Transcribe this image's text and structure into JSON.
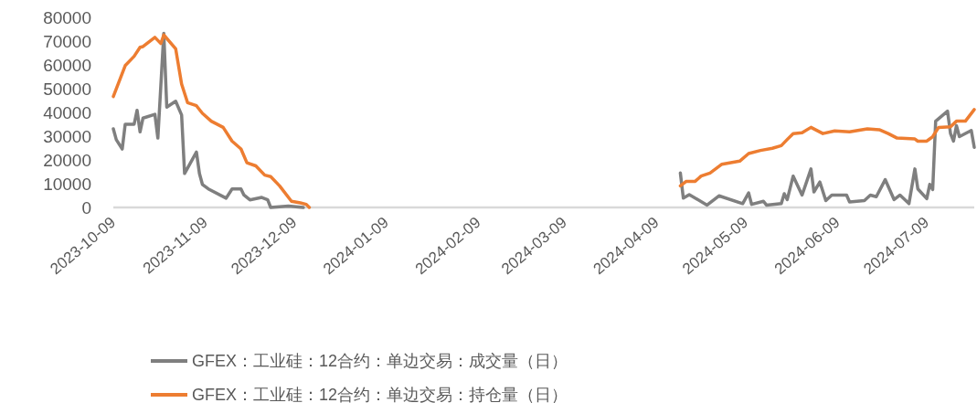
{
  "chart_data": {
    "type": "line",
    "legend": "bottom",
    "grid": false,
    "marker": "none",
    "line_style": "solid",
    "xlim": [
      "2023-10-09",
      "2024-07-25"
    ],
    "xticks": [
      {
        "value": "2023-10-09",
        "label": "2023-10-09"
      },
      {
        "value": "2023-11-09",
        "label": "2023-11-09"
      },
      {
        "value": "2023-12-09",
        "label": "2023-12-09"
      },
      {
        "value": "2024-01-09",
        "label": "2024-01-09"
      },
      {
        "value": "2024-02-09",
        "label": "2024-02-09"
      },
      {
        "value": "2024-03-09",
        "label": "2024-03-09"
      },
      {
        "value": "2024-04-09",
        "label": "2024-04-09"
      },
      {
        "value": "2024-05-09",
        "label": "2024-05-09"
      },
      {
        "value": "2024-06-09",
        "label": "2024-06-09"
      },
      {
        "value": "2024-07-09",
        "label": "2024-07-09"
      }
    ],
    "ylim": [
      0,
      80000
    ],
    "yticks": [
      0,
      10000,
      20000,
      30000,
      40000,
      50000,
      60000,
      70000,
      80000
    ],
    "series": [
      {
        "name": "GFEX：工业硅：12合约：单边交易：成交量（日）",
        "color": "#7f7f7f",
        "x": [
          "2023-10-09",
          "2023-10-10",
          "2023-10-12",
          "2023-10-13",
          "2023-10-16",
          "2023-10-17",
          "2023-10-18",
          "2023-10-19",
          "2023-10-23",
          "2023-10-24",
          "2023-10-26",
          "2023-10-27",
          "2023-10-30",
          "2023-11-01",
          "2023-11-02",
          "2023-11-04",
          "2023-11-06",
          "2023-11-07",
          "2023-11-08",
          "2023-11-10",
          "2023-11-16",
          "2023-11-18",
          "2023-11-21",
          "2023-11-22",
          "2023-11-24",
          "2023-11-28",
          "2023-11-30",
          "2023-12-01",
          "2023-12-07",
          "2023-12-12",
          "2024-01-01",
          "2024-04-17",
          "2024-04-18",
          "2024-04-20",
          "2024-04-26",
          "2024-04-30",
          "2024-05-08",
          "2024-05-10",
          "2024-05-11",
          "2024-05-15",
          "2024-05-16",
          "2024-05-21",
          "2024-05-22",
          "2024-05-23",
          "2024-05-25",
          "2024-05-28",
          "2024-05-31",
          "2024-06-01",
          "2024-06-03",
          "2024-06-05",
          "2024-06-07",
          "2024-06-12",
          "2024-06-13",
          "2024-06-18",
          "2024-06-20",
          "2024-06-22",
          "2024-06-25",
          "2024-06-28",
          "2024-06-30",
          "2024-07-03",
          "2024-07-05",
          "2024-07-06",
          "2024-07-09",
          "2024-07-10",
          "2024-07-11",
          "2024-07-12",
          "2024-07-16",
          "2024-07-17",
          "2024-07-18",
          "2024-07-19",
          "2024-07-20",
          "2024-07-24",
          "2024-07-25"
        ],
        "values": [
          33100,
          28500,
          24600,
          35000,
          35000,
          40900,
          31800,
          37600,
          39200,
          29200,
          73300,
          42200,
          44700,
          38900,
          14300,
          18800,
          23300,
          14300,
          9700,
          7800,
          3900,
          7800,
          7800,
          5200,
          3200,
          4200,
          3200,
          0,
          600,
          0,
          null,
          14500,
          3900,
          5400,
          1000,
          4900,
          1600,
          6100,
          1300,
          2600,
          1000,
          1600,
          5800,
          3300,
          13200,
          5200,
          16200,
          6500,
          10700,
          2900,
          5200,
          5200,
          2300,
          2900,
          5200,
          4500,
          11700,
          3300,
          5200,
          1600,
          16200,
          7800,
          3700,
          9700,
          7500,
          36300,
          40500,
          31100,
          27900,
          34400,
          29800,
          32400,
          25300
        ]
      },
      {
        "name": "GFEX：工业硅：12合约：单边交易：持仓量（日）",
        "color": "#ed7d31",
        "x": [
          "2023-10-09",
          "2023-10-13",
          "2023-10-16",
          "2023-10-18",
          "2023-10-19",
          "2023-10-23",
          "2023-10-25",
          "2023-10-26",
          "2023-10-30",
          "2023-11-01",
          "2023-11-03",
          "2023-11-06",
          "2023-11-08",
          "2023-11-11",
          "2023-11-15",
          "2023-11-18",
          "2023-11-21",
          "2023-11-23",
          "2023-11-26",
          "2023-11-29",
          "2023-12-01",
          "2023-12-04",
          "2023-12-08",
          "2023-12-11",
          "2023-12-13",
          "2023-12-14",
          "2024-01-01",
          "2024-04-17",
          "2024-04-19",
          "2024-04-22",
          "2024-04-24",
          "2024-04-27",
          "2024-05-01",
          "2024-05-07",
          "2024-05-10",
          "2024-05-14",
          "2024-05-18",
          "2024-05-21",
          "2024-05-23",
          "2024-05-25",
          "2024-05-28",
          "2024-05-31",
          "2024-06-04",
          "2024-06-08",
          "2024-06-13",
          "2024-06-19",
          "2024-06-23",
          "2024-06-26",
          "2024-06-29",
          "2024-07-05",
          "2024-07-06",
          "2024-07-09",
          "2024-07-11",
          "2024-07-13",
          "2024-07-17",
          "2024-07-19",
          "2024-07-22",
          "2024-07-25"
        ],
        "values": [
          46700,
          59700,
          63600,
          67400,
          67700,
          71600,
          69000,
          72600,
          66800,
          51900,
          44100,
          42800,
          39600,
          36300,
          33700,
          27900,
          24600,
          18800,
          17500,
          13600,
          13000,
          9100,
          2600,
          1900,
          1300,
          0,
          null,
          9100,
          11000,
          11000,
          13200,
          14500,
          18200,
          19500,
          22700,
          24000,
          24900,
          26000,
          28600,
          31100,
          31400,
          33700,
          31100,
          32200,
          31800,
          33100,
          32700,
          31100,
          29200,
          28800,
          27900,
          27900,
          29800,
          33700,
          33900,
          36300,
          36300,
          41200
        ]
      }
    ]
  }
}
